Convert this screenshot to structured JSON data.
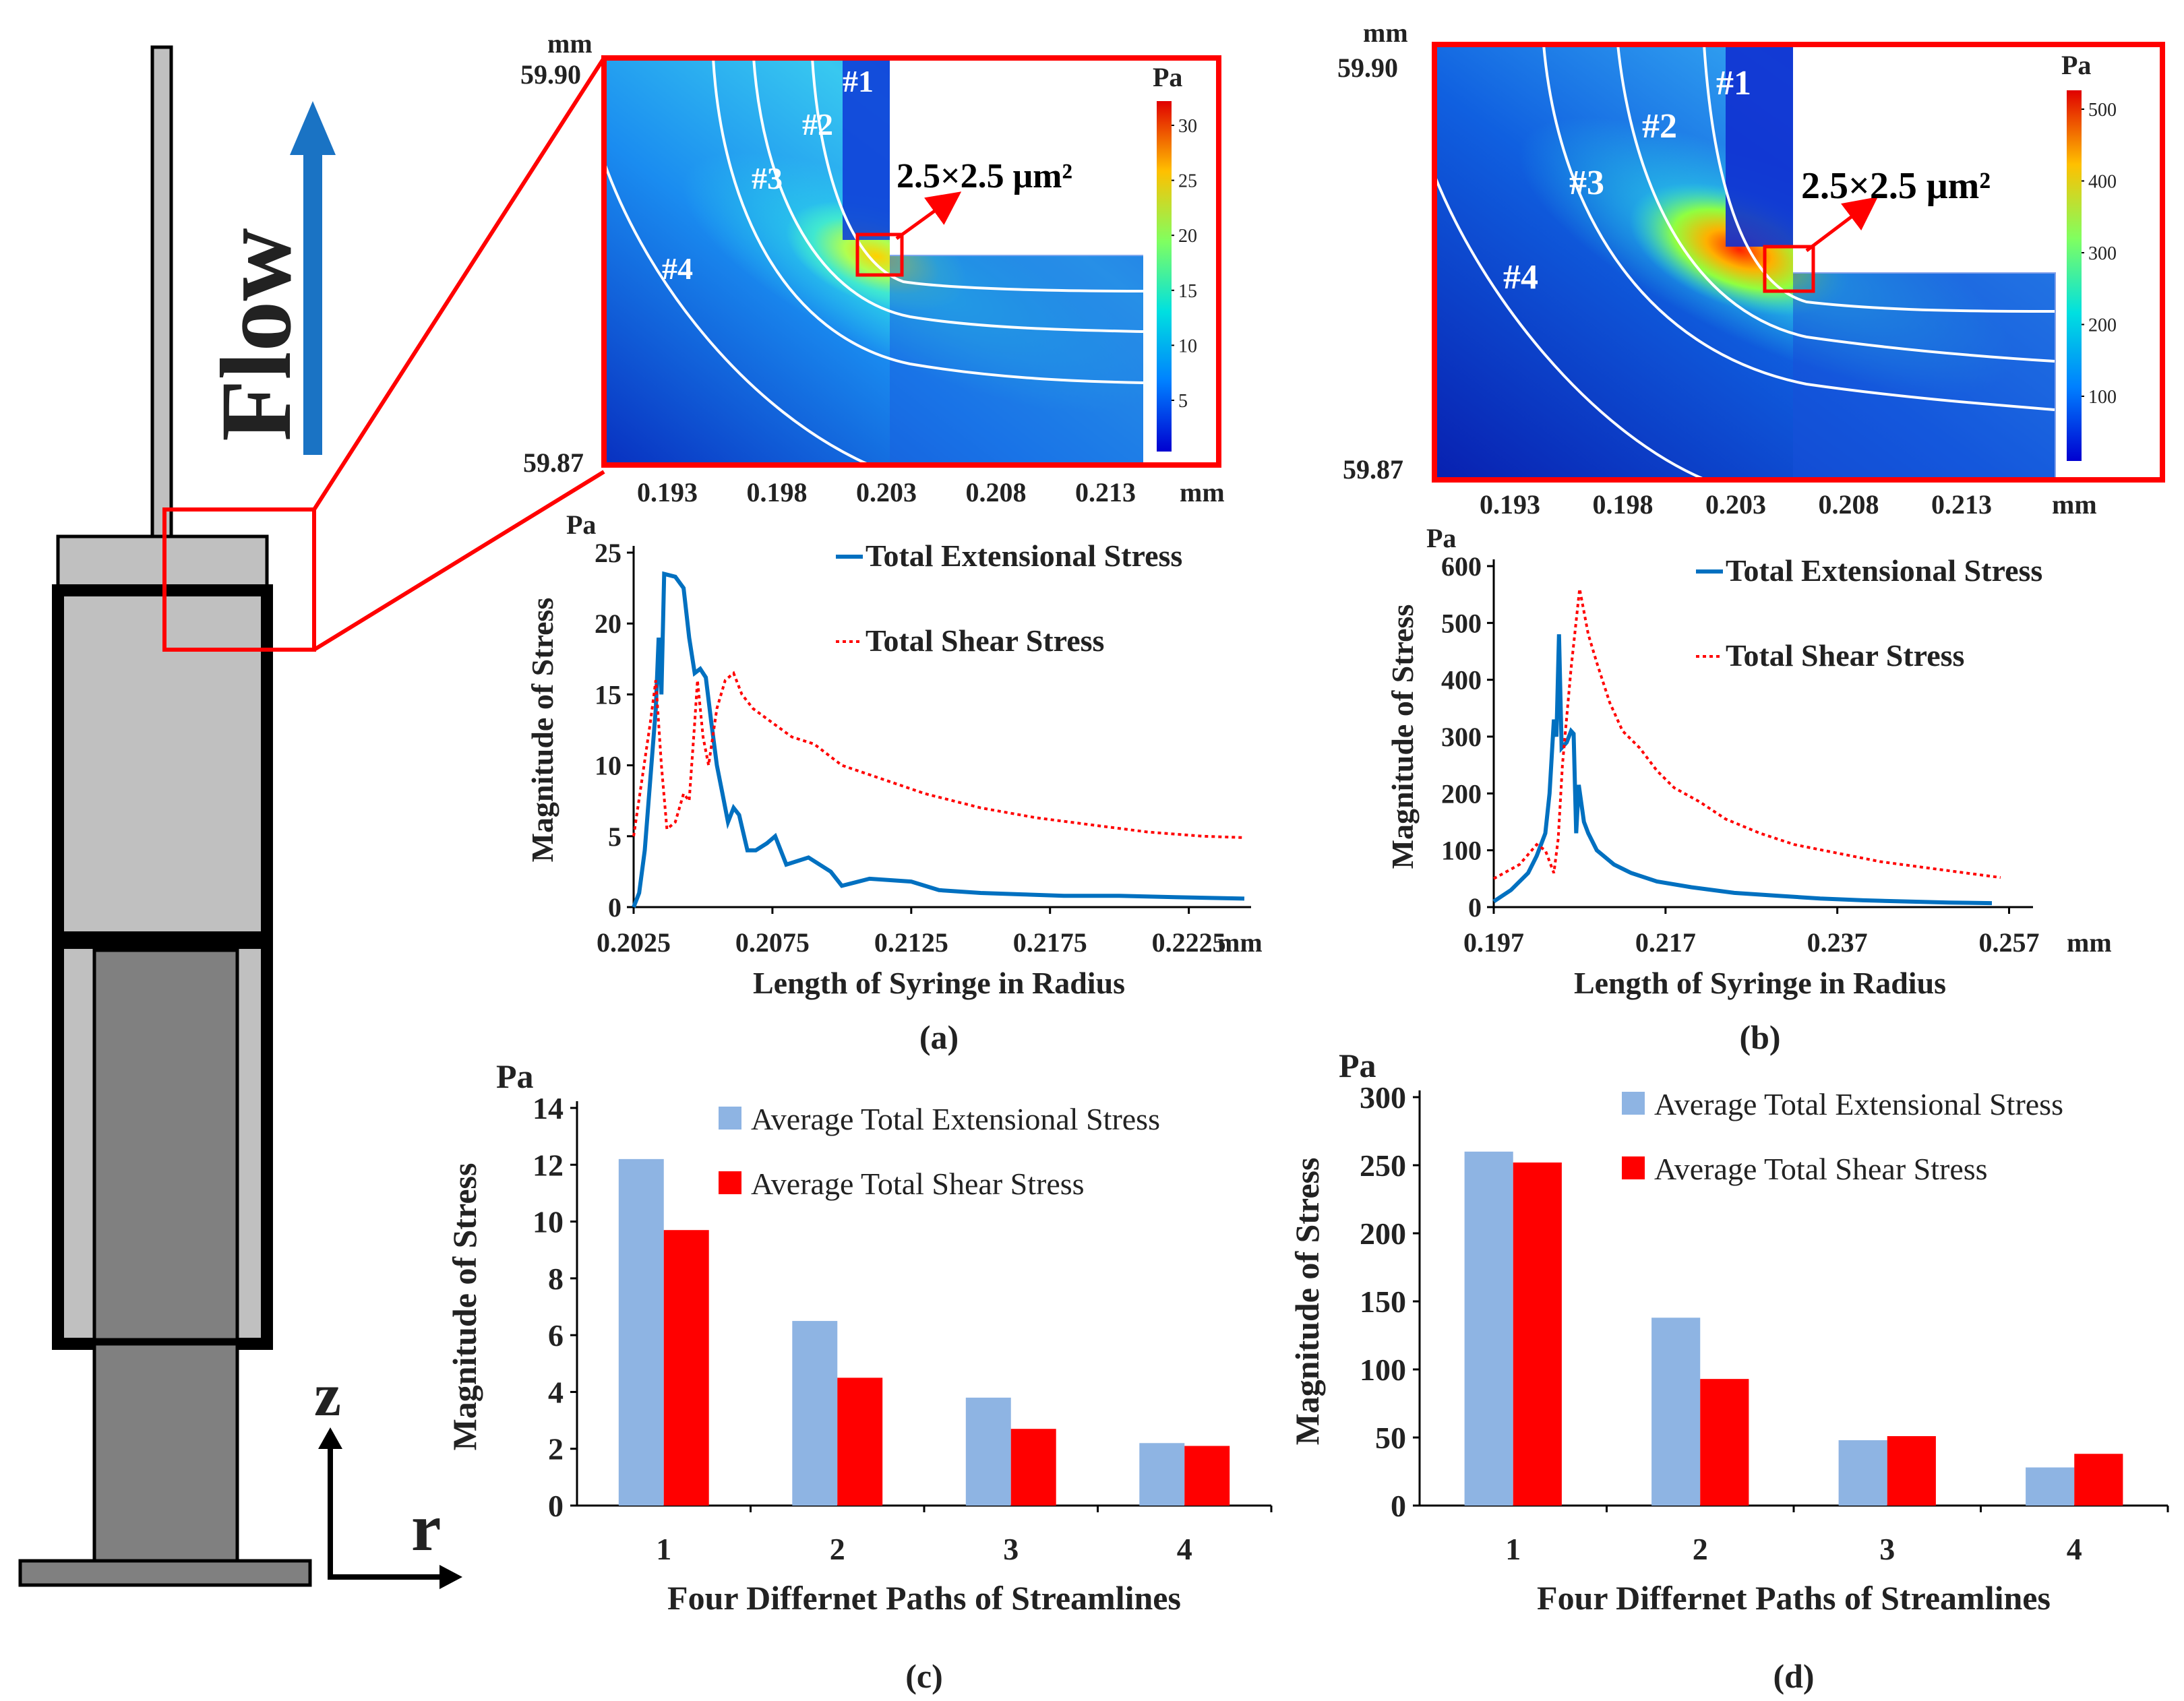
{
  "syringe": {
    "flow_label": "Flow",
    "axis_z_label": "z",
    "axis_r_label": "r",
    "colors": {
      "barrel": "#c0c0c0",
      "plunger": "#808080",
      "border": "#000000",
      "arrow": "#1a73c4",
      "zoom_box": "#ff0000"
    }
  },
  "contour_a": {
    "unit_top": "mm",
    "y_top": "59.90",
    "y_bottom": "59.87",
    "x_ticks": [
      "0.193",
      "0.198",
      "0.203",
      "0.208",
      "0.213"
    ],
    "x_unit": "mm",
    "colorbar_unit": "Pa",
    "colorbar_ticks": [
      "30",
      "25",
      "20",
      "15",
      "10",
      "5"
    ],
    "box_label": "2.5×2.5 μm²",
    "streamlines": [
      "#1",
      "#2",
      "#3",
      "#4"
    ]
  },
  "contour_b": {
    "unit_top": "mm",
    "y_top": "59.90",
    "y_bottom": "59.87",
    "x_ticks": [
      "0.193",
      "0.198",
      "0.203",
      "0.208",
      "0.213"
    ],
    "x_unit": "mm",
    "colorbar_unit": "Pa",
    "colorbar_ticks": [
      "500",
      "400",
      "300",
      "200",
      "100"
    ],
    "box_label": "2.5×2.5 μm²",
    "streamlines": [
      "#1",
      "#2",
      "#3",
      "#4"
    ]
  },
  "chart_data": [
    {
      "id": "a",
      "type": "line",
      "panel_label": "(a)",
      "ylabel": "Magnitude of Stress",
      "xlabel": "Length of Syringe in Radius",
      "y_unit": "Pa",
      "x_unit": "mm",
      "xlim": [
        0.2025,
        0.2245
      ],
      "ylim": [
        0,
        25
      ],
      "x_ticks": [
        "0.2025",
        "0.2075",
        "0.2125",
        "0.2175",
        "0.2225"
      ],
      "y_ticks": [
        "0",
        "5",
        "10",
        "15",
        "20",
        "25"
      ],
      "series": [
        {
          "name": "Total Extensional Stress",
          "style": "solid",
          "color": "#0070c0",
          "points": [
            [
              0.2025,
              0
            ],
            [
              0.2027,
              1
            ],
            [
              0.2029,
              4
            ],
            [
              0.2031,
              9
            ],
            [
              0.2033,
              14
            ],
            [
              0.2034,
              19
            ],
            [
              0.2035,
              15
            ],
            [
              0.2036,
              23.5
            ],
            [
              0.204,
              23.3
            ],
            [
              0.2043,
              22.5
            ],
            [
              0.2045,
              19
            ],
            [
              0.2047,
              16.5
            ],
            [
              0.2049,
              16.8
            ],
            [
              0.2051,
              16.2
            ],
            [
              0.2053,
              13
            ],
            [
              0.2055,
              10
            ],
            [
              0.2057,
              8
            ],
            [
              0.2059,
              6
            ],
            [
              0.2061,
              7
            ],
            [
              0.2063,
              6.5
            ],
            [
              0.2066,
              4
            ],
            [
              0.2069,
              4
            ],
            [
              0.2073,
              4.5
            ],
            [
              0.2076,
              5
            ],
            [
              0.208,
              3
            ],
            [
              0.2088,
              3.5
            ],
            [
              0.2096,
              2.5
            ],
            [
              0.21,
              1.5
            ],
            [
              0.211,
              2
            ],
            [
              0.2125,
              1.8
            ],
            [
              0.2135,
              1.2
            ],
            [
              0.215,
              1
            ],
            [
              0.2165,
              0.9
            ],
            [
              0.218,
              0.8
            ],
            [
              0.22,
              0.8
            ],
            [
              0.222,
              0.7
            ],
            [
              0.2245,
              0.6
            ]
          ]
        },
        {
          "name": "Total Shear Stress",
          "style": "dotted",
          "color": "#ff0000",
          "points": [
            [
              0.2025,
              5
            ],
            [
              0.2028,
              9
            ],
            [
              0.2031,
              13
            ],
            [
              0.2033,
              16
            ],
            [
              0.2035,
              10
            ],
            [
              0.2037,
              5.5
            ],
            [
              0.204,
              6
            ],
            [
              0.2043,
              8
            ],
            [
              0.2045,
              7.5
            ],
            [
              0.2047,
              13
            ],
            [
              0.2048,
              16
            ],
            [
              0.205,
              12
            ],
            [
              0.2052,
              10
            ],
            [
              0.2055,
              14
            ],
            [
              0.2058,
              16
            ],
            [
              0.2061,
              16.5
            ],
            [
              0.2064,
              15
            ],
            [
              0.2068,
              14
            ],
            [
              0.2075,
              13
            ],
            [
              0.2082,
              12
            ],
            [
              0.209,
              11.5
            ],
            [
              0.21,
              10
            ],
            [
              0.2115,
              9
            ],
            [
              0.213,
              8
            ],
            [
              0.215,
              7
            ],
            [
              0.217,
              6.3
            ],
            [
              0.219,
              5.8
            ],
            [
              0.221,
              5.3
            ],
            [
              0.223,
              5
            ],
            [
              0.2245,
              4.9
            ]
          ]
        }
      ]
    },
    {
      "id": "b",
      "type": "line",
      "panel_label": "(b)",
      "ylabel": "Magnitude of Stress",
      "xlabel": "Length of Syringe in Radius",
      "y_unit": "Pa",
      "x_unit": "mm",
      "xlim": [
        0.197,
        0.259
      ],
      "ylim": [
        0,
        600
      ],
      "x_ticks": [
        "0.197",
        "0.217",
        "0.237",
        "0.257"
      ],
      "y_ticks": [
        "0",
        "100",
        "200",
        "300",
        "400",
        "500",
        "600"
      ],
      "series": [
        {
          "name": "Total Extensional Stress",
          "style": "solid",
          "color": "#0070c0",
          "points": [
            [
              0.197,
              10
            ],
            [
              0.199,
              30
            ],
            [
              0.201,
              60
            ],
            [
              0.202,
              90
            ],
            [
              0.203,
              130
            ],
            [
              0.2035,
              200
            ],
            [
              0.204,
              330
            ],
            [
              0.2043,
              300
            ],
            [
              0.2046,
              480
            ],
            [
              0.2049,
              280
            ],
            [
              0.2055,
              290
            ],
            [
              0.206,
              310
            ],
            [
              0.2063,
              305
            ],
            [
              0.2066,
              130
            ],
            [
              0.2069,
              215
            ],
            [
              0.2075,
              150
            ],
            [
              0.208,
              130
            ],
            [
              0.209,
              100
            ],
            [
              0.211,
              75
            ],
            [
              0.213,
              60
            ],
            [
              0.216,
              45
            ],
            [
              0.22,
              35
            ],
            [
              0.225,
              25
            ],
            [
              0.23,
              20
            ],
            [
              0.235,
              15
            ],
            [
              0.24,
              12
            ],
            [
              0.245,
              10
            ],
            [
              0.25,
              8
            ],
            [
              0.255,
              7
            ]
          ]
        },
        {
          "name": "Total Shear Stress",
          "style": "dotted",
          "color": "#ff0000",
          "points": [
            [
              0.197,
              50
            ],
            [
              0.2,
              75
            ],
            [
              0.202,
              110
            ],
            [
              0.203,
              100
            ],
            [
              0.204,
              60
            ],
            [
              0.2045,
              120
            ],
            [
              0.205,
              250
            ],
            [
              0.206,
              420
            ],
            [
              0.207,
              560
            ],
            [
              0.208,
              480
            ],
            [
              0.209,
              430
            ],
            [
              0.2105,
              360
            ],
            [
              0.212,
              310
            ],
            [
              0.214,
              280
            ],
            [
              0.216,
              240
            ],
            [
              0.218,
              210
            ],
            [
              0.221,
              185
            ],
            [
              0.224,
              155
            ],
            [
              0.228,
              130
            ],
            [
              0.232,
              110
            ],
            [
              0.237,
              95
            ],
            [
              0.242,
              80
            ],
            [
              0.247,
              70
            ],
            [
              0.252,
              60
            ],
            [
              0.256,
              52
            ]
          ]
        }
      ]
    },
    {
      "id": "c",
      "type": "bar",
      "panel_label": "(c)",
      "ylabel": "Magnitude of Stress",
      "xlabel": "Four Differnet Paths of Streamlines",
      "y_unit": "Pa",
      "categories": [
        "1",
        "2",
        "3",
        "4"
      ],
      "ylim": [
        0,
        14
      ],
      "y_ticks": [
        "0",
        "2",
        "4",
        "6",
        "8",
        "10",
        "12",
        "14"
      ],
      "series": [
        {
          "name": "Average Total Extensional Stress",
          "color": "#8eb4e3",
          "values": [
            12.2,
            6.5,
            3.8,
            2.2
          ]
        },
        {
          "name": "Average Total Shear Stress",
          "color": "#ff0000",
          "values": [
            9.7,
            4.5,
            2.7,
            2.1
          ]
        }
      ]
    },
    {
      "id": "d",
      "type": "bar",
      "panel_label": "(d)",
      "ylabel": "Magnitude of Stress",
      "xlabel": "Four Differnet Paths of Streamlines",
      "y_unit": "Pa",
      "categories": [
        "1",
        "2",
        "3",
        "4"
      ],
      "ylim": [
        0,
        300
      ],
      "y_ticks": [
        "0",
        "50",
        "100",
        "150",
        "200",
        "250",
        "300"
      ],
      "series": [
        {
          "name": "Average Total Extensional Stress",
          "color": "#8eb4e3",
          "values": [
            260,
            138,
            48,
            28
          ]
        },
        {
          "name": "Average Total Shear Stress",
          "color": "#ff0000",
          "values": [
            252,
            93,
            51,
            38
          ]
        }
      ]
    }
  ]
}
